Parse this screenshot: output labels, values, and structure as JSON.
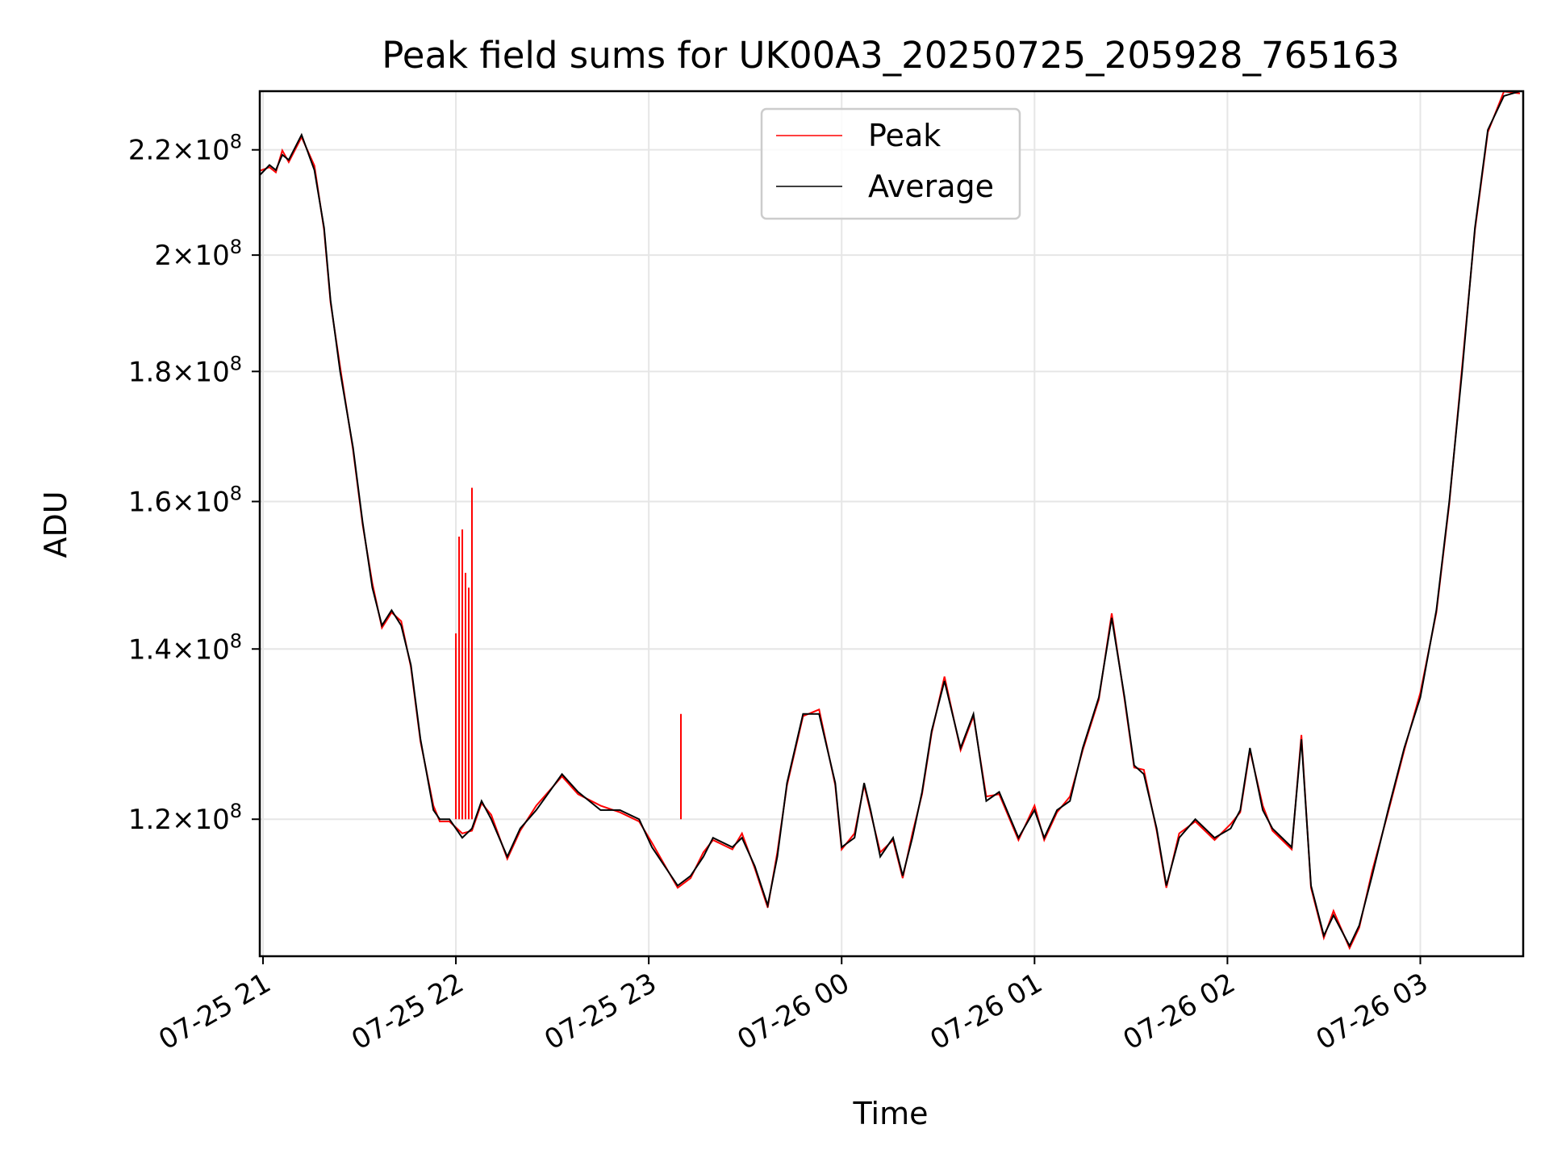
{
  "chart_data": {
    "type": "line",
    "title": "Peak field sums for UK00A3_20250725_205928_765163",
    "xlabel": "Time",
    "ylabel": "ADU",
    "yscale": "log",
    "grid": true,
    "legend_position": "top-center",
    "xlim": [
      "2025-07-25 20:59",
      "2025-07-26 03:32"
    ],
    "ylim": [
      106000000,
      232000000
    ],
    "x_ticks": [
      {
        "value": "2025-07-25 21:00",
        "label": "07-25 21"
      },
      {
        "value": "2025-07-25 22:00",
        "label": "07-25 22"
      },
      {
        "value": "2025-07-25 23:00",
        "label": "07-25 23"
      },
      {
        "value": "2025-07-26 00:00",
        "label": "07-26 00"
      },
      {
        "value": "2025-07-26 01:00",
        "label": "07-26 01"
      },
      {
        "value": "2025-07-26 02:00",
        "label": "07-26 02"
      },
      {
        "value": "2025-07-26 03:00",
        "label": "07-26 03"
      }
    ],
    "y_ticks": [
      {
        "value": 120000000,
        "mantissa": "1.2",
        "exp": "8"
      },
      {
        "value": 140000000,
        "mantissa": "1.4",
        "exp": "8"
      },
      {
        "value": 160000000,
        "mantissa": "1.6",
        "exp": "8"
      },
      {
        "value": 180000000,
        "mantissa": "1.8",
        "exp": "8"
      },
      {
        "value": 200000000,
        "mantissa": "2",
        "exp": "8"
      },
      {
        "value": 220000000,
        "mantissa": "2.2",
        "exp": "8"
      }
    ],
    "series": [
      {
        "name": "Peak",
        "color": "#ff0000"
      },
      {
        "name": "Average",
        "color": "#000000"
      }
    ],
    "average_points": [
      [
        "2025-07-25 20:59",
        215000000
      ],
      [
        "2025-07-25 21:02",
        217000000
      ],
      [
        "2025-07-25 21:04",
        216000000
      ],
      [
        "2025-07-25 21:06",
        219000000
      ],
      [
        "2025-07-25 21:08",
        218000000
      ],
      [
        "2025-07-25 21:12",
        223000000
      ],
      [
        "2025-07-25 21:16",
        216000000
      ],
      [
        "2025-07-25 21:19",
        205000000
      ],
      [
        "2025-07-25 21:21",
        192000000
      ],
      [
        "2025-07-25 21:24",
        180000000
      ],
      [
        "2025-07-25 21:28",
        168000000
      ],
      [
        "2025-07-25 21:31",
        157000000
      ],
      [
        "2025-07-25 21:34",
        148000000
      ],
      [
        "2025-07-25 21:37",
        143000000
      ],
      [
        "2025-07-25 21:40",
        145000000
      ],
      [
        "2025-07-25 21:43",
        143000000
      ],
      [
        "2025-07-25 21:46",
        138000000
      ],
      [
        "2025-07-25 21:49",
        129000000
      ],
      [
        "2025-07-25 21:53",
        121000000
      ],
      [
        "2025-07-25 21:55",
        120000000
      ],
      [
        "2025-07-25 21:58",
        120000000
      ],
      [
        "2025-07-25 22:02",
        118000000
      ],
      [
        "2025-07-25 22:05",
        119000000
      ],
      [
        "2025-07-25 22:08",
        122000000
      ],
      [
        "2025-07-25 22:11",
        120000000
      ],
      [
        "2025-07-25 22:16",
        116000000
      ],
      [
        "2025-07-25 22:20",
        119000000
      ],
      [
        "2025-07-25 22:25",
        121000000
      ],
      [
        "2025-07-25 22:33",
        125000000
      ],
      [
        "2025-07-25 22:38",
        123000000
      ],
      [
        "2025-07-25 22:45",
        121000000
      ],
      [
        "2025-07-25 22:51",
        121000000
      ],
      [
        "2025-07-25 22:57",
        120000000
      ],
      [
        "2025-07-25 23:01",
        117000000
      ],
      [
        "2025-07-25 23:09",
        113000000
      ],
      [
        "2025-07-25 23:13",
        114000000
      ],
      [
        "2025-07-25 23:17",
        116000000
      ],
      [
        "2025-07-25 23:20",
        118000000
      ],
      [
        "2025-07-25 23:26",
        117000000
      ],
      [
        "2025-07-25 23:29",
        118000000
      ],
      [
        "2025-07-25 23:33",
        115000000
      ],
      [
        "2025-07-25 23:37",
        111000000
      ],
      [
        "2025-07-25 23:40",
        116000000
      ],
      [
        "2025-07-25 23:43",
        124000000
      ],
      [
        "2025-07-25 23:48",
        132000000
      ],
      [
        "2025-07-25 23:53",
        132000000
      ],
      [
        "2025-07-25 23:58",
        124000000
      ],
      [
        "2025-07-26 00:00",
        117000000
      ],
      [
        "2025-07-26 00:04",
        118000000
      ],
      [
        "2025-07-26 00:07",
        124000000
      ],
      [
        "2025-07-26 00:09",
        121000000
      ],
      [
        "2025-07-26 00:12",
        116000000
      ],
      [
        "2025-07-26 00:16",
        118000000
      ],
      [
        "2025-07-26 00:19",
        114000000
      ],
      [
        "2025-07-26 00:22",
        118000000
      ],
      [
        "2025-07-26 00:25",
        123000000
      ],
      [
        "2025-07-26 00:28",
        130000000
      ],
      [
        "2025-07-26 00:32",
        136000000
      ],
      [
        "2025-07-26 00:37",
        128000000
      ],
      [
        "2025-07-26 00:41",
        132000000
      ],
      [
        "2025-07-26 00:45",
        122000000
      ],
      [
        "2025-07-26 00:49",
        123000000
      ],
      [
        "2025-07-26 00:55",
        118000000
      ],
      [
        "2025-07-26 01:00",
        121000000
      ],
      [
        "2025-07-26 01:03",
        118000000
      ],
      [
        "2025-07-26 01:07",
        121000000
      ],
      [
        "2025-07-26 01:11",
        122000000
      ],
      [
        "2025-07-26 01:15",
        128000000
      ],
      [
        "2025-07-26 01:20",
        134000000
      ],
      [
        "2025-07-26 01:24",
        144000000
      ],
      [
        "2025-07-26 01:28",
        134000000
      ],
      [
        "2025-07-26 01:31",
        126000000
      ],
      [
        "2025-07-26 01:34",
        125000000
      ],
      [
        "2025-07-26 01:38",
        119000000
      ],
      [
        "2025-07-26 01:41",
        113000000
      ],
      [
        "2025-07-26 01:45",
        118000000
      ],
      [
        "2025-07-26 01:50",
        120000000
      ],
      [
        "2025-07-26 01:56",
        118000000
      ],
      [
        "2025-07-26 02:01",
        119000000
      ],
      [
        "2025-07-26 02:04",
        121000000
      ],
      [
        "2025-07-26 02:07",
        128000000
      ],
      [
        "2025-07-26 02:11",
        121000000
      ],
      [
        "2025-07-26 02:14",
        119000000
      ],
      [
        "2025-07-26 02:20",
        117000000
      ],
      [
        "2025-07-26 02:23",
        129000000
      ],
      [
        "2025-07-26 02:26",
        113000000
      ],
      [
        "2025-07-26 02:30",
        108000000
      ],
      [
        "2025-07-26 02:33",
        110000000
      ],
      [
        "2025-07-26 02:38",
        107000000
      ],
      [
        "2025-07-26 02:41",
        109000000
      ],
      [
        "2025-07-26 02:45",
        114000000
      ],
      [
        "2025-07-26 02:50",
        121000000
      ],
      [
        "2025-07-26 02:55",
        128000000
      ],
      [
        "2025-07-26 03:00",
        134000000
      ],
      [
        "2025-07-26 03:05",
        145000000
      ],
      [
        "2025-07-26 03:09",
        160000000
      ],
      [
        "2025-07-26 03:13",
        180000000
      ],
      [
        "2025-07-26 03:17",
        205000000
      ],
      [
        "2025-07-26 03:21",
        224000000
      ],
      [
        "2025-07-26 03:26",
        231000000
      ],
      [
        "2025-07-26 03:31",
        232000000
      ]
    ],
    "peak_spikes": [
      [
        "2025-07-25 22:00",
        142000000
      ],
      [
        "2025-07-25 22:01",
        155000000
      ],
      [
        "2025-07-25 22:02",
        145000000
      ],
      [
        "2025-07-25 22:02",
        156000000
      ],
      [
        "2025-07-25 22:03",
        150000000
      ],
      [
        "2025-07-25 22:04",
        148000000
      ],
      [
        "2025-07-25 22:05",
        162000000
      ],
      [
        "2025-07-25 23:10",
        132000000
      ]
    ]
  }
}
